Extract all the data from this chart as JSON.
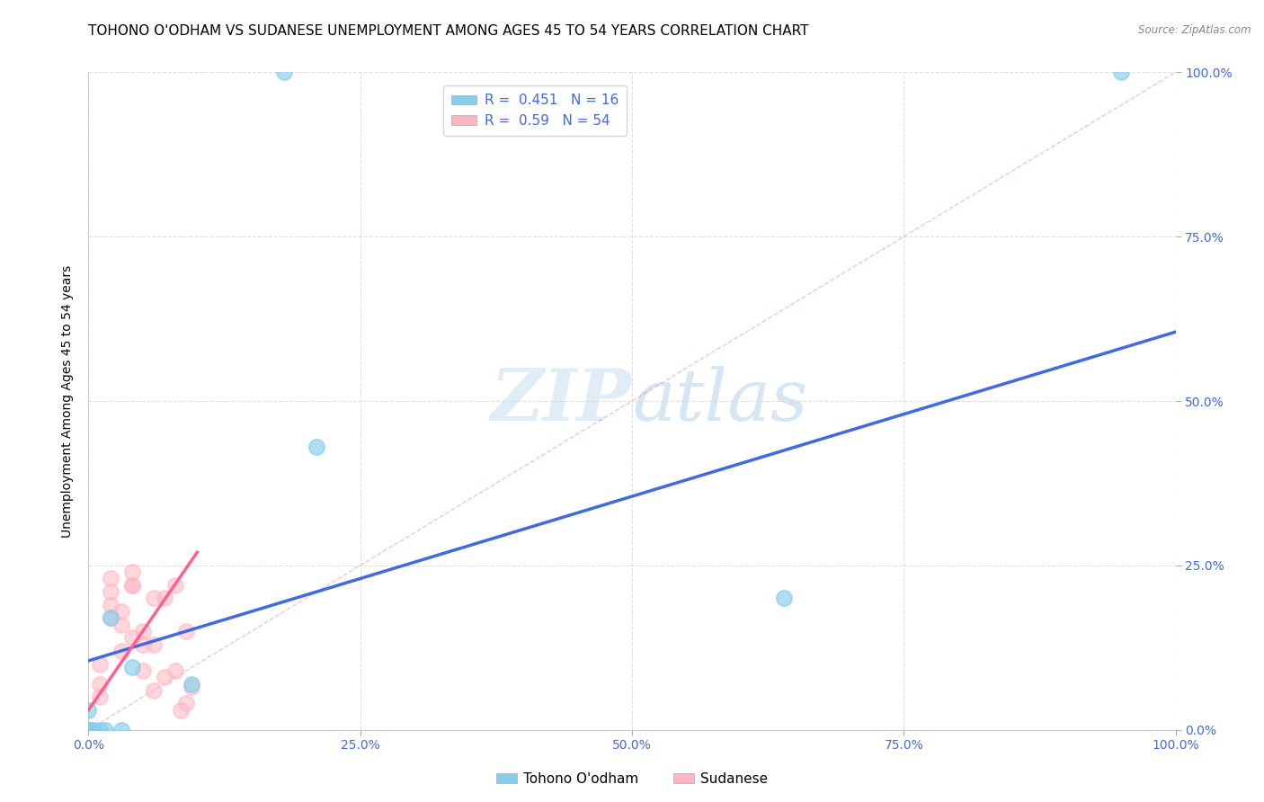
{
  "title": "TOHONO O'ODHAM VS SUDANESE UNEMPLOYMENT AMONG AGES 45 TO 54 YEARS CORRELATION CHART",
  "source": "Source: ZipAtlas.com",
  "ylabel": "Unemployment Among Ages 45 to 54 years",
  "xlim": [
    0,
    1.0
  ],
  "ylim": [
    0,
    1.0
  ],
  "xticks": [
    0.0,
    0.25,
    0.5,
    0.75,
    1.0
  ],
  "yticks": [
    0.0,
    0.25,
    0.5,
    0.75,
    1.0
  ],
  "xticklabels": [
    "0.0%",
    "25.0%",
    "50.0%",
    "75.0%",
    "100.0%"
  ],
  "yticklabels": [
    "0.0%",
    "25.0%",
    "50.0%",
    "75.0%",
    "100.0%"
  ],
  "tohono_color": "#87CEEB",
  "sudanese_color": "#FFB6C1",
  "tohono_R": 0.451,
  "tohono_N": 16,
  "sudanese_R": 0.59,
  "sudanese_N": 54,
  "tohono_line_color": "#4169E1",
  "sudanese_line_color": "#FF6090",
  "ref_line_color": "#C8C8C8",
  "watermark_zip": "ZIP",
  "watermark_atlas": "atlas",
  "tohono_scatter_x": [
    0.0,
    0.0,
    0.005,
    0.01,
    0.015,
    0.02,
    0.03,
    0.04,
    0.095,
    0.18,
    0.21,
    0.64,
    0.95,
    0.0,
    0.0,
    0.0
  ],
  "tohono_scatter_y": [
    0.0,
    0.0,
    0.0,
    0.0,
    0.0,
    0.17,
    0.0,
    0.095,
    0.07,
    1.0,
    0.43,
    0.2,
    1.0,
    0.03,
    0.0,
    0.0
  ],
  "sudanese_scatter_x": [
    0.0,
    0.0,
    0.0,
    0.0,
    0.0,
    0.0,
    0.0,
    0.0,
    0.0,
    0.0,
    0.0,
    0.0,
    0.0,
    0.0,
    0.0,
    0.0,
    0.0,
    0.0,
    0.0,
    0.0,
    0.0,
    0.0,
    0.0,
    0.0,
    0.0,
    0.01,
    0.01,
    0.02,
    0.02,
    0.02,
    0.03,
    0.03,
    0.04,
    0.04,
    0.04,
    0.05,
    0.05,
    0.06,
    0.06,
    0.06,
    0.07,
    0.07,
    0.08,
    0.08,
    0.085,
    0.09,
    0.09,
    0.095,
    0.01,
    0.02,
    0.03,
    0.04,
    0.05,
    0.0
  ],
  "sudanese_scatter_y": [
    0.0,
    0.0,
    0.0,
    0.0,
    0.0,
    0.0,
    0.0,
    0.0,
    0.0,
    0.0,
    0.0,
    0.0,
    0.0,
    0.0,
    0.0,
    0.0,
    0.0,
    0.0,
    0.0,
    0.0,
    0.0,
    0.0,
    0.0,
    0.0,
    0.0,
    0.05,
    0.1,
    0.17,
    0.21,
    0.23,
    0.12,
    0.18,
    0.14,
    0.22,
    0.24,
    0.09,
    0.15,
    0.06,
    0.13,
    0.2,
    0.08,
    0.2,
    0.09,
    0.22,
    0.03,
    0.04,
    0.15,
    0.065,
    0.07,
    0.19,
    0.16,
    0.22,
    0.13,
    0.0
  ],
  "tohono_line_x0": 0.0,
  "tohono_line_y0": 0.105,
  "tohono_line_x1": 1.0,
  "tohono_line_y1": 0.605,
  "sudanese_line_x0": 0.0,
  "sudanese_line_y0": 0.03,
  "sudanese_line_x1": 0.1,
  "sudanese_line_y1": 0.27,
  "background_color": "#ffffff",
  "grid_color": "#DCDCDC",
  "tick_color": "#4169E1",
  "title_fontsize": 11,
  "axis_fontsize": 10,
  "legend_fontsize": 11
}
